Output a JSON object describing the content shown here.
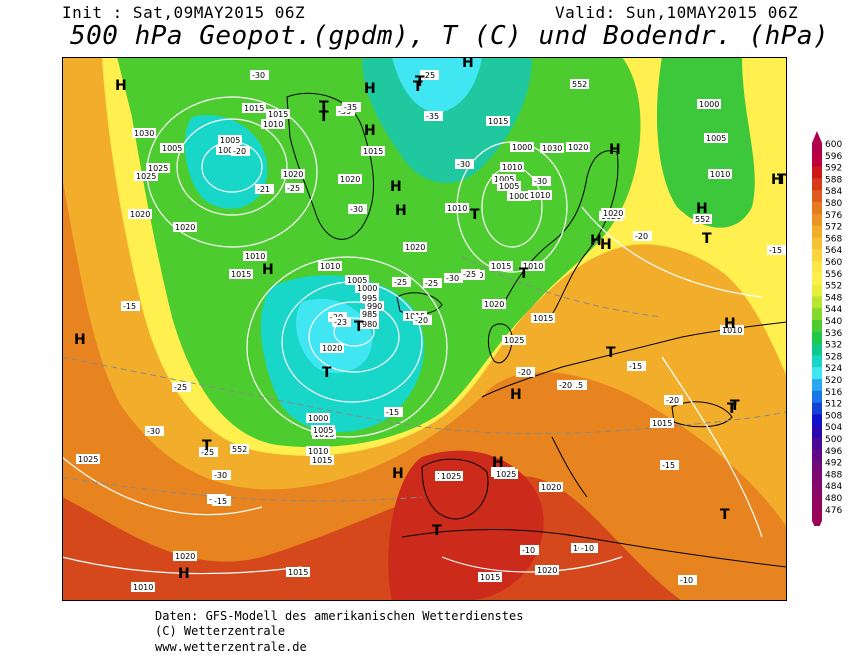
{
  "header": {
    "init": "Init : Sat,09MAY2015 06Z",
    "valid": "Valid: Sun,10MAY2015 06Z",
    "title": "500 hPa Geopot.(gpdm), T (C) und Bodendr. (hPa)"
  },
  "legend": {
    "levels": [
      600,
      596,
      592,
      588,
      584,
      580,
      576,
      572,
      568,
      564,
      560,
      556,
      552,
      548,
      544,
      540,
      536,
      532,
      528,
      524,
      520,
      516,
      512,
      508,
      504,
      500,
      496,
      492,
      488,
      484,
      480,
      476
    ],
    "colors": [
      "#b0004c",
      "#c0003f",
      "#cc1a1a",
      "#d93a1a",
      "#e05a1f",
      "#e67a22",
      "#ec9423",
      "#f2ad2b",
      "#f6c235",
      "#fad540",
      "#fde64a",
      "#fff050",
      "#e8ee3c",
      "#b8e432",
      "#84d82e",
      "#4ccc2e",
      "#20c84a",
      "#10c888",
      "#18d6c8",
      "#40e6f2",
      "#2aa8f2",
      "#1876e8",
      "#1440d8",
      "#1212c8",
      "#2a0ab0",
      "#4a0a98",
      "#620a86",
      "#720a78",
      "#80086e",
      "#8a0866",
      "#920660",
      "#980458"
    ]
  },
  "map": {
    "pressure_labels": [
      "1025",
      "1025",
      "1020",
      "1030",
      "1025",
      "1020",
      "1015",
      "1010",
      "1005",
      "1000",
      "1020",
      "1015",
      "1010",
      "1015",
      "1020",
      "1015",
      "1010",
      "1005",
      "1000",
      "1010",
      "1005",
      "1000",
      "1010",
      "1015",
      "1010",
      "1020",
      "1010",
      "1015",
      "1020",
      "1030",
      "1015",
      "1010",
      "1005",
      "1000",
      "995",
      "990",
      "985",
      "980",
      "1015",
      "1020",
      "1025",
      "1020",
      "1015",
      "1010",
      "1005",
      "1000",
      "1015",
      "1025",
      "1020",
      "1020",
      "1015",
      "1020",
      "1025",
      "1025",
      "1020",
      "1020",
      "1015",
      "1010",
      "1015",
      "1020",
      "1015",
      "1010",
      "1020",
      "1000",
      "1005",
      "1010",
      "1005"
    ],
    "temp_labels": [
      "-30",
      "-35",
      "-25",
      "-35",
      "-30",
      "-35",
      "-25",
      "-30",
      "-30",
      "-25",
      "-25",
      "-30",
      "-25",
      "-20",
      "-21",
      "-20",
      "-23",
      "-20",
      "-15",
      "-20",
      "-15",
      "-20",
      "-25",
      "-20",
      "-15",
      "-25",
      "-30",
      "-20",
      "-15",
      "-15",
      "-10",
      "-10",
      "-15",
      "-15",
      "-10",
      "-20",
      "-30"
    ],
    "gph_labels": [
      "552",
      "552",
      "552"
    ],
    "highs": [
      "H",
      "H",
      "H",
      "H",
      "H",
      "H",
      "H",
      "H",
      "H",
      "H",
      "H",
      "H",
      "H",
      "H",
      "H",
      "H",
      "H",
      "H"
    ],
    "lows": [
      "T",
      "T",
      "T",
      "T",
      "T",
      "T",
      "T",
      "T",
      "T",
      "T",
      "T",
      "T",
      "T",
      "T",
      "T",
      "T"
    ]
  },
  "footer": {
    "line1": "Daten: GFS-Modell des amerikanischen Wetterdienstes",
    "line2": "(C) Wetterzentrale",
    "line3": "www.wetterzentrale.de"
  }
}
